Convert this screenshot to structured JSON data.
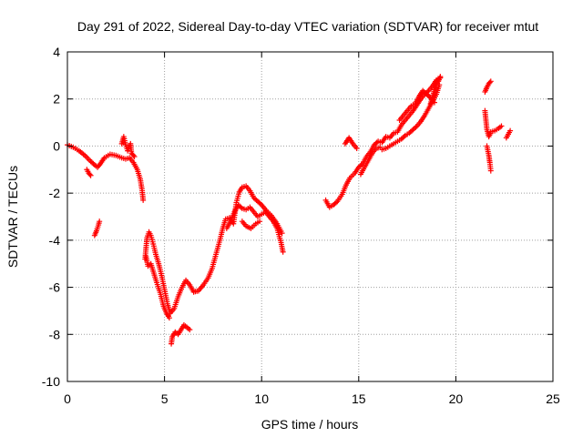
{
  "chart_data": {
    "type": "scatter",
    "title": "Day 291 of 2022, Sidereal Day-to-day VTEC variation (SDTVAR) for receiver mtut",
    "xlabel": "GPS time / hours",
    "ylabel": "SDTVAR / TECUs",
    "xlim": [
      0,
      25
    ],
    "ylim": [
      -10,
      4
    ],
    "xticks": [
      0,
      5,
      10,
      15,
      20,
      25
    ],
    "xtick_labels": [
      "0",
      "5",
      "10",
      "15",
      "20",
      "25"
    ],
    "yticks": [
      -10,
      -8,
      -6,
      -4,
      -2,
      0,
      2,
      4
    ],
    "ytick_labels": [
      "-10",
      "-8",
      "-6",
      "-4",
      "-2",
      "0",
      "2",
      "4"
    ],
    "grid": true,
    "marker": "+",
    "series": [
      {
        "name": "SDTVAR",
        "color": "#ff0000",
        "segments": [
          [
            [
              0.0,
              0.05
            ],
            [
              0.3,
              -0.05
            ],
            [
              0.6,
              -0.2
            ],
            [
              0.9,
              -0.4
            ],
            [
              1.2,
              -0.65
            ],
            [
              1.4,
              -0.8
            ],
            [
              1.55,
              -0.9
            ],
            [
              1.7,
              -0.75
            ],
            [
              1.9,
              -0.5
            ],
            [
              2.2,
              -0.35
            ],
            [
              2.5,
              -0.4
            ],
            [
              2.8,
              -0.5
            ],
            [
              3.0,
              -0.55
            ],
            [
              3.2,
              -0.5
            ],
            [
              3.4,
              -0.7
            ],
            [
              3.6,
              -1.0
            ],
            [
              3.75,
              -1.4
            ],
            [
              3.85,
              -1.9
            ],
            [
              3.9,
              -2.3
            ]
          ],
          [
            [
              1.0,
              -1.0
            ],
            [
              1.1,
              -1.15
            ],
            [
              1.2,
              -1.25
            ]
          ],
          [
            [
              2.8,
              0.1
            ],
            [
              2.9,
              0.4
            ],
            [
              3.0,
              0.05
            ],
            [
              3.1,
              -0.2
            ],
            [
              3.25,
              0.1
            ],
            [
              3.3,
              -0.3
            ],
            [
              3.45,
              -0.45
            ]
          ],
          [
            [
              1.4,
              -3.8
            ],
            [
              1.5,
              -3.6
            ],
            [
              1.6,
              -3.35
            ],
            [
              1.65,
              -3.2
            ]
          ],
          [
            [
              4.0,
              -4.8
            ],
            [
              4.05,
              -4.3
            ],
            [
              4.1,
              -3.9
            ],
            [
              4.2,
              -3.65
            ],
            [
              4.3,
              -3.8
            ],
            [
              4.45,
              -4.25
            ],
            [
              4.55,
              -4.6
            ],
            [
              4.7,
              -5.0
            ],
            [
              4.85,
              -5.5
            ],
            [
              5.0,
              -6.1
            ],
            [
              5.15,
              -6.7
            ],
            [
              5.3,
              -7.1
            ],
            [
              5.5,
              -6.9
            ],
            [
              5.7,
              -6.4
            ],
            [
              5.9,
              -6.0
            ],
            [
              6.1,
              -5.7
            ],
            [
              6.3,
              -5.9
            ],
            [
              6.5,
              -6.2
            ],
            [
              6.75,
              -6.15
            ],
            [
              7.0,
              -5.9
            ],
            [
              7.25,
              -5.6
            ],
            [
              7.45,
              -5.2
            ],
            [
              7.65,
              -4.6
            ],
            [
              7.85,
              -4.0
            ],
            [
              8.0,
              -3.5
            ],
            [
              8.15,
              -3.1
            ],
            [
              8.35,
              -3.05
            ],
            [
              8.55,
              -3.3
            ],
            [
              8.7,
              -2.4
            ],
            [
              8.85,
              -1.95
            ],
            [
              9.0,
              -1.75
            ],
            [
              9.2,
              -1.7
            ],
            [
              9.4,
              -1.9
            ],
            [
              9.6,
              -2.2
            ],
            [
              9.8,
              -2.35
            ],
            [
              10.0,
              -2.5
            ],
            [
              10.25,
              -2.75
            ],
            [
              10.5,
              -2.95
            ],
            [
              10.8,
              -3.3
            ],
            [
              11.05,
              -3.7
            ]
          ],
          [
            [
              4.05,
              -4.7
            ],
            [
              4.15,
              -5.1
            ],
            [
              4.3,
              -5.0
            ],
            [
              4.45,
              -5.4
            ],
            [
              4.6,
              -5.8
            ],
            [
              4.8,
              -6.3
            ],
            [
              4.95,
              -6.8
            ],
            [
              5.1,
              -7.1
            ],
            [
              5.25,
              -7.3
            ]
          ],
          [
            [
              5.35,
              -8.4
            ],
            [
              5.4,
              -8.1
            ],
            [
              5.55,
              -7.9
            ],
            [
              5.7,
              -8.0
            ],
            [
              5.85,
              -7.8
            ],
            [
              6.0,
              -7.6
            ],
            [
              6.15,
              -7.7
            ],
            [
              6.3,
              -7.8
            ]
          ],
          [
            [
              8.2,
              -3.5
            ],
            [
              8.4,
              -3.2
            ],
            [
              8.6,
              -2.8
            ],
            [
              8.8,
              -2.5
            ],
            [
              9.0,
              -2.65
            ],
            [
              9.2,
              -2.7
            ],
            [
              9.4,
              -2.6
            ],
            [
              9.6,
              -2.8
            ],
            [
              9.8,
              -3.0
            ],
            [
              10.0,
              -2.9
            ],
            [
              10.2,
              -2.8
            ],
            [
              10.4,
              -3.0
            ],
            [
              10.6,
              -3.2
            ],
            [
              10.8,
              -3.5
            ],
            [
              11.0,
              -4.1
            ],
            [
              11.1,
              -4.5
            ]
          ],
          [
            [
              9.0,
              -3.2
            ],
            [
              9.2,
              -3.4
            ],
            [
              9.45,
              -3.5
            ],
            [
              9.7,
              -3.3
            ],
            [
              9.9,
              -3.2
            ]
          ],
          [
            [
              13.3,
              -2.3
            ],
            [
              13.5,
              -2.6
            ],
            [
              13.7,
              -2.5
            ],
            [
              13.9,
              -2.35
            ],
            [
              14.15,
              -2.05
            ],
            [
              14.35,
              -1.65
            ],
            [
              14.55,
              -1.35
            ],
            [
              14.8,
              -1.15
            ],
            [
              15.0,
              -0.9
            ],
            [
              15.2,
              -0.75
            ],
            [
              15.4,
              -0.45
            ],
            [
              15.6,
              -0.25
            ],
            [
              15.8,
              0.05
            ],
            [
              16.0,
              0.2
            ],
            [
              16.2,
              0.15
            ],
            [
              16.4,
              0.4
            ],
            [
              16.6,
              0.35
            ],
            [
              16.8,
              0.55
            ],
            [
              17.0,
              0.6
            ],
            [
              17.2,
              0.9
            ],
            [
              17.4,
              1.1
            ],
            [
              17.6,
              1.3
            ],
            [
              17.8,
              1.5
            ],
            [
              18.0,
              1.75
            ],
            [
              18.2,
              2.0
            ],
            [
              18.4,
              2.2
            ],
            [
              18.6,
              2.35
            ],
            [
              18.8,
              2.55
            ],
            [
              19.0,
              2.8
            ],
            [
              19.2,
              2.9
            ]
          ],
          [
            [
              14.3,
              0.1
            ],
            [
              14.5,
              0.35
            ],
            [
              14.7,
              0.1
            ],
            [
              14.9,
              -0.1
            ]
          ],
          [
            [
              15.1,
              -1.2
            ],
            [
              15.3,
              -0.9
            ],
            [
              15.5,
              -0.6
            ],
            [
              15.7,
              -0.3
            ],
            [
              15.9,
              -0.1
            ],
            [
              16.1,
              -0.05
            ]
          ],
          [
            [
              16.2,
              -0.15
            ],
            [
              16.4,
              -0.1
            ],
            [
              16.6,
              0.0
            ],
            [
              16.8,
              0.1
            ],
            [
              17.0,
              0.2
            ],
            [
              17.2,
              0.3
            ],
            [
              17.4,
              0.45
            ],
            [
              17.6,
              0.55
            ],
            [
              17.8,
              0.7
            ],
            [
              18.0,
              0.85
            ],
            [
              18.2,
              1.05
            ],
            [
              18.4,
              1.3
            ],
            [
              18.6,
              1.6
            ],
            [
              18.8,
              1.9
            ],
            [
              19.0,
              2.2
            ],
            [
              19.15,
              2.6
            ]
          ],
          [
            [
              17.1,
              1.1
            ],
            [
              17.3,
              1.3
            ],
            [
              17.5,
              1.5
            ],
            [
              17.7,
              1.7
            ],
            [
              17.9,
              1.8
            ],
            [
              18.1,
              2.1
            ],
            [
              18.3,
              2.35
            ],
            [
              18.5,
              2.2
            ],
            [
              18.7,
              2.05
            ],
            [
              18.9,
              1.85
            ]
          ],
          [
            [
              18.7,
              1.8
            ],
            [
              18.8,
              2.1
            ],
            [
              18.9,
              2.4
            ],
            [
              19.0,
              2.6
            ],
            [
              19.1,
              2.75
            ],
            [
              19.2,
              2.95
            ]
          ],
          [
            [
              21.5,
              2.3
            ],
            [
              21.6,
              2.5
            ],
            [
              21.7,
              2.65
            ],
            [
              21.8,
              2.75
            ]
          ],
          [
            [
              21.5,
              1.5
            ],
            [
              21.55,
              1.1
            ],
            [
              21.6,
              0.7
            ],
            [
              21.7,
              0.4
            ],
            [
              21.8,
              0.6
            ],
            [
              22.0,
              0.65
            ],
            [
              22.2,
              0.75
            ],
            [
              22.35,
              0.85
            ]
          ],
          [
            [
              21.6,
              0.0
            ],
            [
              21.7,
              -0.4
            ],
            [
              21.75,
              -0.7
            ],
            [
              21.8,
              -1.05
            ]
          ],
          [
            [
              22.6,
              0.35
            ],
            [
              22.7,
              0.5
            ],
            [
              22.8,
              0.65
            ]
          ]
        ]
      }
    ]
  }
}
